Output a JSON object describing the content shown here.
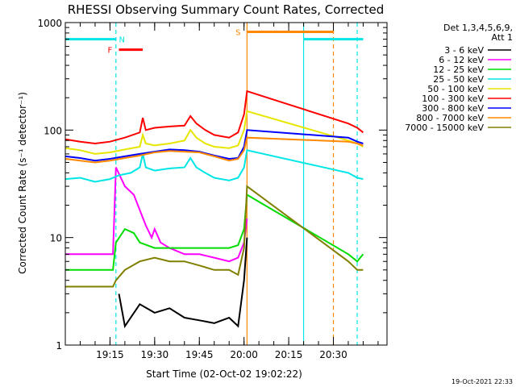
{
  "chart_data": {
    "type": "line",
    "title": "RHESSI Observing Summary Count Rates, Corrected",
    "xlabel": "Start Time (02-Oct-02 19:02:22)",
    "ylabel": "Corrected Count Rate (s⁻¹ detector⁻¹)",
    "yscale": "log",
    "ylim": [
      1,
      1000
    ],
    "xlim_min": [
      0,
      108
    ],
    "xticks": [
      {
        "m": 15,
        "label": "19:15"
      },
      {
        "m": 30,
        "label": "19:30"
      },
      {
        "m": 45,
        "label": "19:45"
      },
      {
        "m": 60,
        "label": "20:00"
      },
      {
        "m": 75,
        "label": "20:15"
      },
      {
        "m": 90,
        "label": "20:30"
      }
    ],
    "yticks": [
      {
        "v": 1,
        "label": "1"
      },
      {
        "v": 10,
        "label": "10"
      },
      {
        "v": 100,
        "label": "100"
      },
      {
        "v": 1000,
        "label": "1000"
      }
    ],
    "legend_header": [
      "Det 1,3,4,5,6,9,",
      "Att 1"
    ],
    "legend_placement": "right",
    "series": [
      {
        "name": "3 - 6 keV",
        "color": "#000000",
        "pts": [
          [
            18,
            3
          ],
          [
            20,
            1.5
          ],
          [
            25,
            2.4
          ],
          [
            30,
            2
          ],
          [
            35,
            2.2
          ],
          [
            40,
            1.8
          ],
          [
            45,
            1.7
          ],
          [
            50,
            1.6
          ],
          [
            55,
            1.8
          ],
          [
            58,
            1.5
          ],
          [
            60,
            4
          ],
          [
            61,
            10
          ]
        ]
      },
      {
        "name": "6 - 12 keV",
        "color": "#ff00ff",
        "pts": [
          [
            0,
            7
          ],
          [
            16,
            7
          ],
          [
            17,
            45
          ],
          [
            20,
            30
          ],
          [
            23,
            25
          ],
          [
            25,
            18
          ],
          [
            27,
            13
          ],
          [
            29,
            10
          ],
          [
            30,
            12
          ],
          [
            32,
            9
          ],
          [
            35,
            8
          ],
          [
            40,
            7
          ],
          [
            45,
            7
          ],
          [
            50,
            6.5
          ],
          [
            55,
            6
          ],
          [
            58,
            6.5
          ],
          [
            60,
            9
          ],
          [
            61,
            15
          ]
        ]
      },
      {
        "name": "12 - 25 keV",
        "color": "#00dd00",
        "pts": [
          [
            0,
            5
          ],
          [
            16,
            5
          ],
          [
            17,
            9
          ],
          [
            20,
            12
          ],
          [
            23,
            11
          ],
          [
            25,
            9
          ],
          [
            30,
            8
          ],
          [
            35,
            8
          ],
          [
            40,
            8
          ],
          [
            45,
            8
          ],
          [
            50,
            8
          ],
          [
            55,
            8
          ],
          [
            58,
            8.5
          ],
          [
            60,
            12
          ],
          [
            61,
            25
          ],
          [
            95,
            7
          ],
          [
            98,
            6
          ],
          [
            100,
            7
          ]
        ]
      },
      {
        "name": "25 - 50 keV",
        "color": "#00e6e6",
        "pts": [
          [
            0,
            35
          ],
          [
            5,
            36
          ],
          [
            10,
            33
          ],
          [
            15,
            35
          ],
          [
            18,
            38
          ],
          [
            22,
            40
          ],
          [
            25,
            45
          ],
          [
            26,
            60
          ],
          [
            27,
            45
          ],
          [
            30,
            42
          ],
          [
            35,
            44
          ],
          [
            40,
            45
          ],
          [
            42,
            55
          ],
          [
            44,
            45
          ],
          [
            47,
            40
          ],
          [
            50,
            36
          ],
          [
            55,
            34
          ],
          [
            58,
            36
          ],
          [
            60,
            45
          ],
          [
            61,
            65
          ],
          [
            95,
            40
          ],
          [
            98,
            36
          ],
          [
            100,
            35
          ]
        ]
      },
      {
        "name": "50 - 100 keV",
        "color": "#e6e600",
        "pts": [
          [
            0,
            68
          ],
          [
            5,
            65
          ],
          [
            10,
            60
          ],
          [
            15,
            62
          ],
          [
            20,
            66
          ],
          [
            25,
            70
          ],
          [
            26,
            90
          ],
          [
            27,
            75
          ],
          [
            30,
            72
          ],
          [
            35,
            75
          ],
          [
            40,
            80
          ],
          [
            42,
            100
          ],
          [
            44,
            85
          ],
          [
            47,
            75
          ],
          [
            50,
            70
          ],
          [
            55,
            68
          ],
          [
            58,
            72
          ],
          [
            60,
            100
          ],
          [
            61,
            150
          ],
          [
            95,
            80
          ],
          [
            98,
            75
          ],
          [
            100,
            70
          ]
        ]
      },
      {
        "name": "100 - 300 keV",
        "color": "#ff0000",
        "pts": [
          [
            0,
            82
          ],
          [
            5,
            78
          ],
          [
            10,
            75
          ],
          [
            15,
            78
          ],
          [
            20,
            85
          ],
          [
            25,
            95
          ],
          [
            26,
            130
          ],
          [
            27,
            100
          ],
          [
            30,
            105
          ],
          [
            35,
            108
          ],
          [
            40,
            110
          ],
          [
            42,
            135
          ],
          [
            44,
            115
          ],
          [
            47,
            100
          ],
          [
            50,
            90
          ],
          [
            55,
            85
          ],
          [
            58,
            95
          ],
          [
            60,
            140
          ],
          [
            61,
            230
          ],
          [
            95,
            115
          ],
          [
            98,
            105
          ],
          [
            100,
            95
          ]
        ]
      },
      {
        "name": "300 - 800 keV",
        "color": "#0000ff",
        "pts": [
          [
            0,
            57
          ],
          [
            5,
            55
          ],
          [
            10,
            52
          ],
          [
            15,
            54
          ],
          [
            20,
            57
          ],
          [
            25,
            60
          ],
          [
            30,
            63
          ],
          [
            35,
            66
          ],
          [
            40,
            65
          ],
          [
            45,
            63
          ],
          [
            50,
            58
          ],
          [
            55,
            54
          ],
          [
            58,
            55
          ],
          [
            60,
            70
          ],
          [
            61,
            100
          ],
          [
            95,
            85
          ],
          [
            98,
            78
          ],
          [
            100,
            75
          ]
        ]
      },
      {
        "name": "800 - 7000 keV",
        "color": "#ff8800",
        "pts": [
          [
            0,
            54
          ],
          [
            5,
            52
          ],
          [
            10,
            50
          ],
          [
            15,
            52
          ],
          [
            20,
            55
          ],
          [
            25,
            58
          ],
          [
            30,
            62
          ],
          [
            35,
            64
          ],
          [
            40,
            63
          ],
          [
            45,
            62
          ],
          [
            50,
            57
          ],
          [
            55,
            52
          ],
          [
            58,
            54
          ],
          [
            60,
            65
          ],
          [
            61,
            85
          ],
          [
            95,
            78
          ],
          [
            98,
            75
          ],
          [
            100,
            72
          ]
        ]
      },
      {
        "name": "7000 - 15000 keV",
        "color": "#808000",
        "pts": [
          [
            0,
            3.5
          ],
          [
            16,
            3.5
          ],
          [
            17,
            4
          ],
          [
            20,
            5
          ],
          [
            25,
            6
          ],
          [
            30,
            6.5
          ],
          [
            35,
            6
          ],
          [
            40,
            6
          ],
          [
            45,
            5.5
          ],
          [
            50,
            5
          ],
          [
            55,
            5
          ],
          [
            58,
            4.5
          ],
          [
            60,
            8
          ],
          [
            61,
            30
          ],
          [
            95,
            6
          ],
          [
            98,
            5
          ],
          [
            100,
            5
          ]
        ]
      }
    ],
    "state_bars": [
      {
        "label": "",
        "color": "#00e6e6",
        "y": 700,
        "segments": [
          [
            0,
            17
          ],
          [
            80,
            100
          ]
        ]
      },
      {
        "label": "N",
        "color": "#00e6e6",
        "y": 700,
        "label_m": 19,
        "segments": []
      },
      {
        "label": "F",
        "color": "#ff0000",
        "y": 560,
        "label_m": 15,
        "segments": [
          [
            18,
            26
          ]
        ]
      },
      {
        "label": "S",
        "color": "#ff8800",
        "y": 820,
        "label_m": 58,
        "segments": [
          [
            61,
            90
          ]
        ]
      }
    ],
    "vlines": [
      {
        "m": 17,
        "color": "#00e6e6",
        "dash": true
      },
      {
        "m": 61,
        "color": "#ff8800",
        "dash": false
      },
      {
        "m": 80,
        "color": "#00e6e6",
        "dash": false
      },
      {
        "m": 90,
        "color": "#ff8800",
        "dash": true
      },
      {
        "m": 98,
        "color": "#00e6e6",
        "dash": true
      }
    ]
  },
  "footer": {
    "date_stamp": "19-Oct-2021 22:33"
  }
}
